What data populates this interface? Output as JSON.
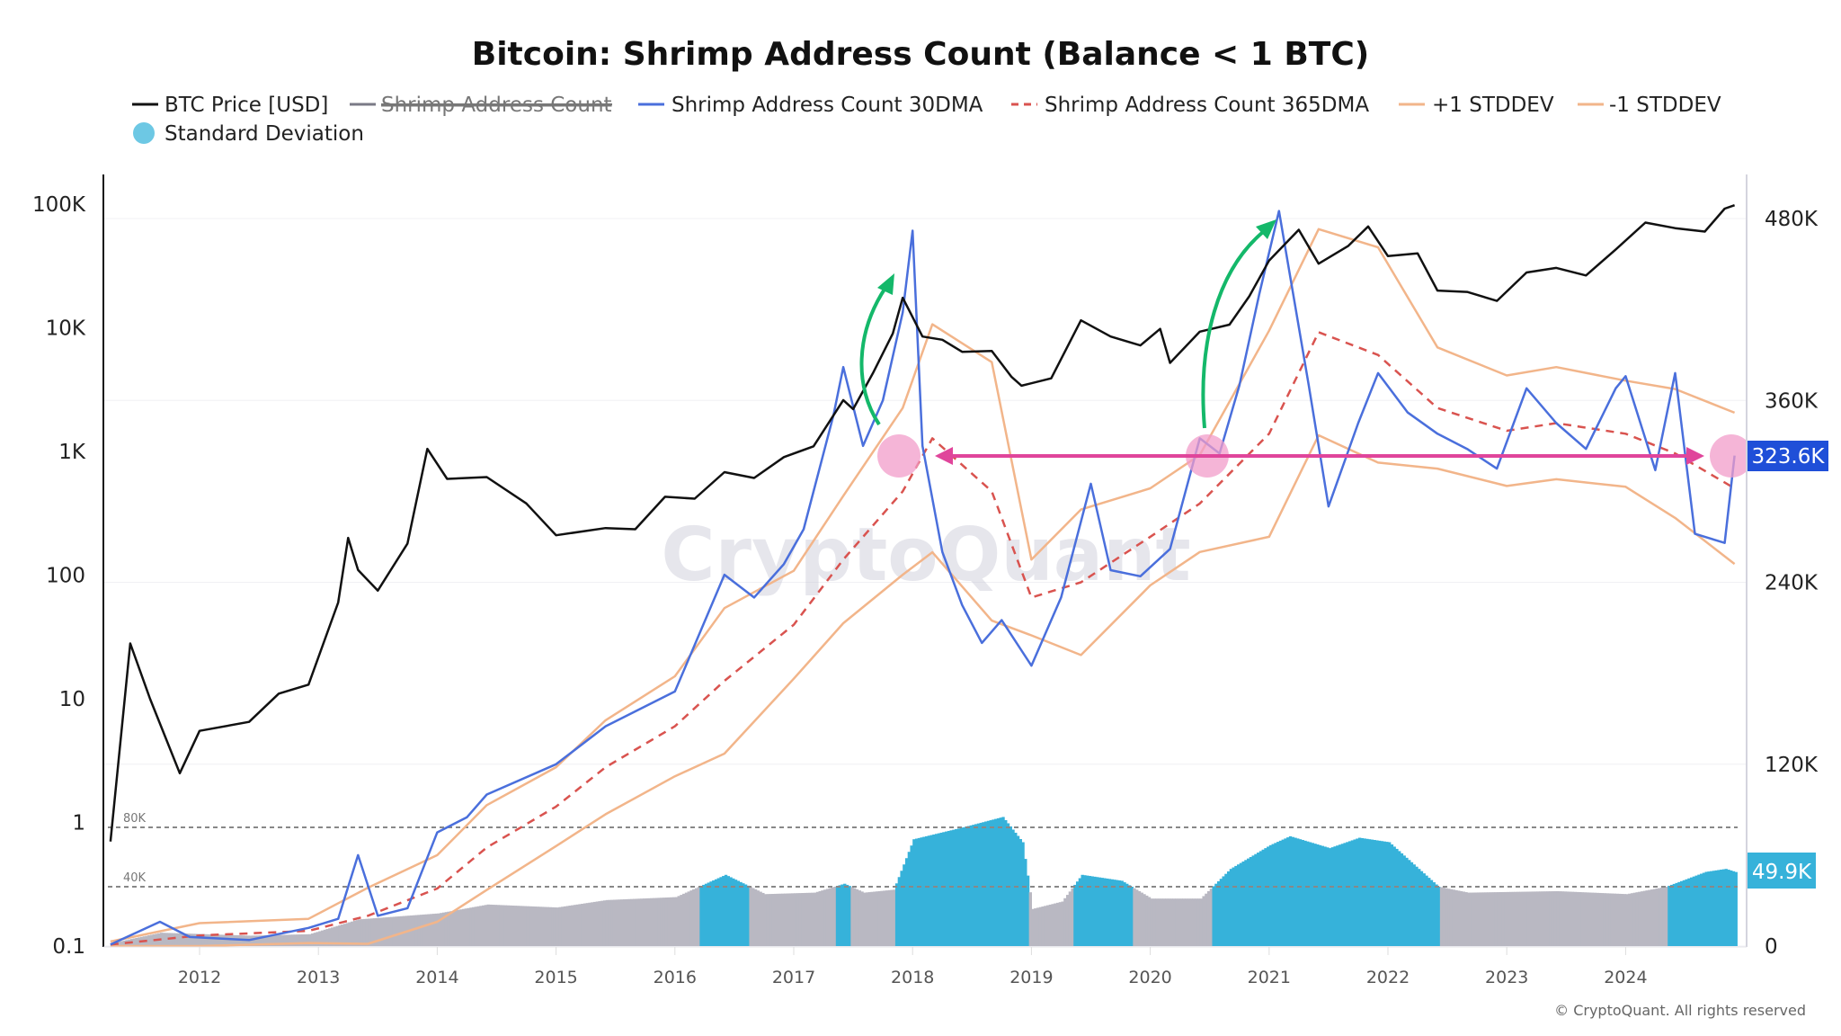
{
  "chart_data": {
    "type": "line",
    "title": "Bitcoin: Shrimp Address Count (Balance < 1 BTC)",
    "legend": {
      "placement": "top",
      "entries": [
        {
          "name": "BTC Price [USD]",
          "color": "#111111",
          "style": "solid",
          "hidden": false
        },
        {
          "name": "Shrimp Address Count",
          "color": "#7a7a86",
          "style": "solid",
          "hidden": true
        },
        {
          "name": "Shrimp Address Count 30DMA",
          "color": "#4a6fdc",
          "style": "solid",
          "hidden": false
        },
        {
          "name": "Shrimp Address Count 365DMA",
          "color": "#d9534f",
          "style": "dashed",
          "hidden": false
        },
        {
          "name": "+1 STDDEV",
          "color": "#f2b58a",
          "style": "solid",
          "hidden": false
        },
        {
          "name": "-1 STDDEV",
          "color": "#f2b58a",
          "style": "solid",
          "hidden": false
        },
        {
          "name": "Standard Deviation",
          "color": "#36b2da",
          "style": "area",
          "hidden": false
        }
      ]
    },
    "x_axis": {
      "type": "date",
      "ticks": [
        "2012",
        "2013",
        "2014",
        "2015",
        "2016",
        "2017",
        "2018",
        "2019",
        "2020",
        "2021",
        "2022",
        "2023",
        "2024"
      ]
    },
    "y_left": {
      "scale": "log",
      "ylim": [
        0.1,
        100000
      ],
      "ticks": [
        "0.1",
        "1",
        "10",
        "100",
        "1K",
        "10K",
        "100K"
      ]
    },
    "y_right": {
      "scale": "linear",
      "ylim": [
        0,
        480000
      ],
      "ticks": [
        "0",
        "120K",
        "240K",
        "360K",
        "480K"
      ]
    },
    "std_panel": {
      "ylim": [
        0,
        80000
      ],
      "reference_lines": [
        {
          "value": 80000,
          "label": "80K"
        },
        {
          "value": 40000,
          "label": "40K"
        }
      ],
      "highlight_threshold": 40000,
      "highlight_color": "#36b2da",
      "base_color": "#b9b8c2"
    },
    "last_values": {
      "shrimp_30dma": "323.6K",
      "std": "49.9K"
    },
    "grid": true,
    "btc_price": [
      [
        "2011-04",
        0.7
      ],
      [
        "2011-06",
        28
      ],
      [
        "2011-08",
        10
      ],
      [
        "2011-11",
        2.5
      ],
      [
        "2012-01",
        5.5
      ],
      [
        "2012-06",
        6.5
      ],
      [
        "2012-09",
        11
      ],
      [
        "2012-12",
        13
      ],
      [
        "2013-03",
        60
      ],
      [
        "2013-04",
        200
      ],
      [
        "2013-05",
        110
      ],
      [
        "2013-07",
        75
      ],
      [
        "2013-10",
        180
      ],
      [
        "2013-12",
        1050
      ],
      [
        "2014-02",
        600
      ],
      [
        "2014-06",
        620
      ],
      [
        "2014-10",
        380
      ],
      [
        "2015-01",
        210
      ],
      [
        "2015-06",
        240
      ],
      [
        "2015-09",
        235
      ],
      [
        "2015-12",
        430
      ],
      [
        "2016-03",
        415
      ],
      [
        "2016-06",
        680
      ],
      [
        "2016-09",
        610
      ],
      [
        "2016-12",
        900
      ],
      [
        "2017-03",
        1100
      ],
      [
        "2017-06",
        2600
      ],
      [
        "2017-07",
        2200
      ],
      [
        "2017-09",
        4300
      ],
      [
        "2017-11",
        9000
      ],
      [
        "2017-12",
        17500
      ],
      [
        "2018-02",
        8500
      ],
      [
        "2018-04",
        8000
      ],
      [
        "2018-06",
        6400
      ],
      [
        "2018-09",
        6500
      ],
      [
        "2018-11",
        4000
      ],
      [
        "2018-12",
        3400
      ],
      [
        "2019-03",
        3900
      ],
      [
        "2019-06",
        11500
      ],
      [
        "2019-09",
        8500
      ],
      [
        "2019-12",
        7200
      ],
      [
        "2020-02",
        9800
      ],
      [
        "2020-03",
        5200
      ],
      [
        "2020-06",
        9300
      ],
      [
        "2020-09",
        10600
      ],
      [
        "2020-11",
        18000
      ],
      [
        "2021-01",
        35000
      ],
      [
        "2021-04",
        62000
      ],
      [
        "2021-06",
        33000
      ],
      [
        "2021-09",
        46000
      ],
      [
        "2021-11",
        66000
      ],
      [
        "2022-01",
        38000
      ],
      [
        "2022-04",
        40000
      ],
      [
        "2022-06",
        20000
      ],
      [
        "2022-09",
        19500
      ],
      [
        "2022-12",
        16500
      ],
      [
        "2023-03",
        28000
      ],
      [
        "2023-06",
        30500
      ],
      [
        "2023-09",
        26500
      ],
      [
        "2023-12",
        43000
      ],
      [
        "2024-03",
        71000
      ],
      [
        "2024-06",
        64000
      ],
      [
        "2024-09",
        60000
      ],
      [
        "2024-11",
        92000
      ],
      [
        "2024-12",
        98000
      ]
    ],
    "shrimp_30dma": [
      [
        "2011-04",
        1000
      ],
      [
        "2011-09",
        16000
      ],
      [
        "2011-12",
        6000
      ],
      [
        "2012-06",
        4000
      ],
      [
        "2012-12",
        12000
      ],
      [
        "2013-03",
        18000
      ],
      [
        "2013-05",
        60000
      ],
      [
        "2013-07",
        20000
      ],
      [
        "2013-10",
        25000
      ],
      [
        "2014-01",
        75000
      ],
      [
        "2014-04",
        85000
      ],
      [
        "2014-06",
        100000
      ],
      [
        "2015-01",
        120000
      ],
      [
        "2015-06",
        145000
      ],
      [
        "2016-01",
        168000
      ],
      [
        "2016-06",
        245000
      ],
      [
        "2016-09",
        230000
      ],
      [
        "2016-12",
        252000
      ],
      [
        "2017-02",
        275000
      ],
      [
        "2017-05",
        350000
      ],
      [
        "2017-06",
        382000
      ],
      [
        "2017-08",
        330000
      ],
      [
        "2017-10",
        360000
      ],
      [
        "2017-12",
        418000
      ],
      [
        "2018-01",
        472000
      ],
      [
        "2018-02",
        330000
      ],
      [
        "2018-04",
        260000
      ],
      [
        "2018-06",
        225000
      ],
      [
        "2018-08",
        200000
      ],
      [
        "2018-10",
        215000
      ],
      [
        "2019-01",
        185000
      ],
      [
        "2019-04",
        230000
      ],
      [
        "2019-07",
        305000
      ],
      [
        "2019-09",
        248000
      ],
      [
        "2019-12",
        244000
      ],
      [
        "2020-03",
        262000
      ],
      [
        "2020-06",
        335000
      ],
      [
        "2020-08",
        325000
      ],
      [
        "2020-10",
        370000
      ],
      [
        "2020-12",
        430000
      ],
      [
        "2021-02",
        485000
      ],
      [
        "2021-05",
        370000
      ],
      [
        "2021-07",
        290000
      ],
      [
        "2021-10",
        345000
      ],
      [
        "2021-12",
        378000
      ],
      [
        "2022-03",
        352000
      ],
      [
        "2022-06",
        338000
      ],
      [
        "2022-09",
        328000
      ],
      [
        "2022-12",
        315000
      ],
      [
        "2023-03",
        368000
      ],
      [
        "2023-06",
        345000
      ],
      [
        "2023-09",
        328000
      ],
      [
        "2023-12",
        368000
      ],
      [
        "2024-01",
        376000
      ],
      [
        "2024-04",
        314000
      ],
      [
        "2024-06",
        378000
      ],
      [
        "2024-08",
        272000
      ],
      [
        "2024-11",
        266000
      ],
      [
        "2024-12",
        323600
      ]
    ],
    "shrimp_365dma": [
      [
        "2011-04",
        1000
      ],
      [
        "2012-01",
        7000
      ],
      [
        "2012-12",
        10000
      ],
      [
        "2013-06",
        20000
      ],
      [
        "2014-01",
        38000
      ],
      [
        "2014-06",
        65000
      ],
      [
        "2015-01",
        92000
      ],
      [
        "2015-06",
        118000
      ],
      [
        "2016-01",
        145000
      ],
      [
        "2016-06",
        175000
      ],
      [
        "2017-01",
        212000
      ],
      [
        "2017-06",
        255000
      ],
      [
        "2017-12",
        300000
      ],
      [
        "2018-03",
        335000
      ],
      [
        "2018-09",
        300000
      ],
      [
        "2019-01",
        230000
      ],
      [
        "2019-06",
        240000
      ],
      [
        "2020-01",
        270000
      ],
      [
        "2020-06",
        292000
      ],
      [
        "2021-01",
        338000
      ],
      [
        "2021-06",
        405000
      ],
      [
        "2021-12",
        390000
      ],
      [
        "2022-06",
        355000
      ],
      [
        "2023-01",
        340000
      ],
      [
        "2023-06",
        345000
      ],
      [
        "2024-01",
        338000
      ],
      [
        "2024-06",
        325000
      ],
      [
        "2024-12",
        302000
      ]
    ],
    "std": [
      [
        "2011-04",
        2000
      ],
      [
        "2011-09",
        9000
      ],
      [
        "2012-06",
        7000
      ],
      [
        "2012-12",
        8000
      ],
      [
        "2013-05",
        18000
      ],
      [
        "2013-09",
        20000
      ],
      [
        "2014-01",
        22000
      ],
      [
        "2014-06",
        28000
      ],
      [
        "2015-01",
        26000
      ],
      [
        "2015-06",
        31000
      ],
      [
        "2016-01",
        33000
      ],
      [
        "2016-06",
        48000
      ],
      [
        "2016-10",
        35000
      ],
      [
        "2017-03",
        36000
      ],
      [
        "2017-06",
        42000
      ],
      [
        "2017-08",
        36000
      ],
      [
        "2017-11",
        38000
      ],
      [
        "2018-01",
        72000
      ],
      [
        "2018-06",
        80000
      ],
      [
        "2018-10",
        87000
      ],
      [
        "2018-12",
        70000
      ],
      [
        "2019-01",
        25000
      ],
      [
        "2019-04",
        30000
      ],
      [
        "2019-06",
        48000
      ],
      [
        "2019-10",
        44000
      ],
      [
        "2020-01",
        32000
      ],
      [
        "2020-06",
        32000
      ],
      [
        "2020-09",
        52000
      ],
      [
        "2021-01",
        68000
      ],
      [
        "2021-03",
        74000
      ],
      [
        "2021-07",
        66000
      ],
      [
        "2021-10",
        73000
      ],
      [
        "2022-01",
        70000
      ],
      [
        "2022-04",
        52000
      ],
      [
        "2022-06",
        40000
      ],
      [
        "2022-09",
        36000
      ],
      [
        "2023-06",
        37000
      ],
      [
        "2024-01",
        35000
      ],
      [
        "2024-05",
        40000
      ],
      [
        "2024-09",
        50000
      ],
      [
        "2024-11",
        52000
      ],
      [
        "2024-12",
        49900
      ]
    ]
  },
  "watermark": "CryptoQuant",
  "copyright": "© CryptoQuant. All rights reserved",
  "annotations": {
    "highlight_color": "#f29cc9",
    "arrow_color": "#e0459b",
    "trend_arrow_color": "#14b86a"
  }
}
